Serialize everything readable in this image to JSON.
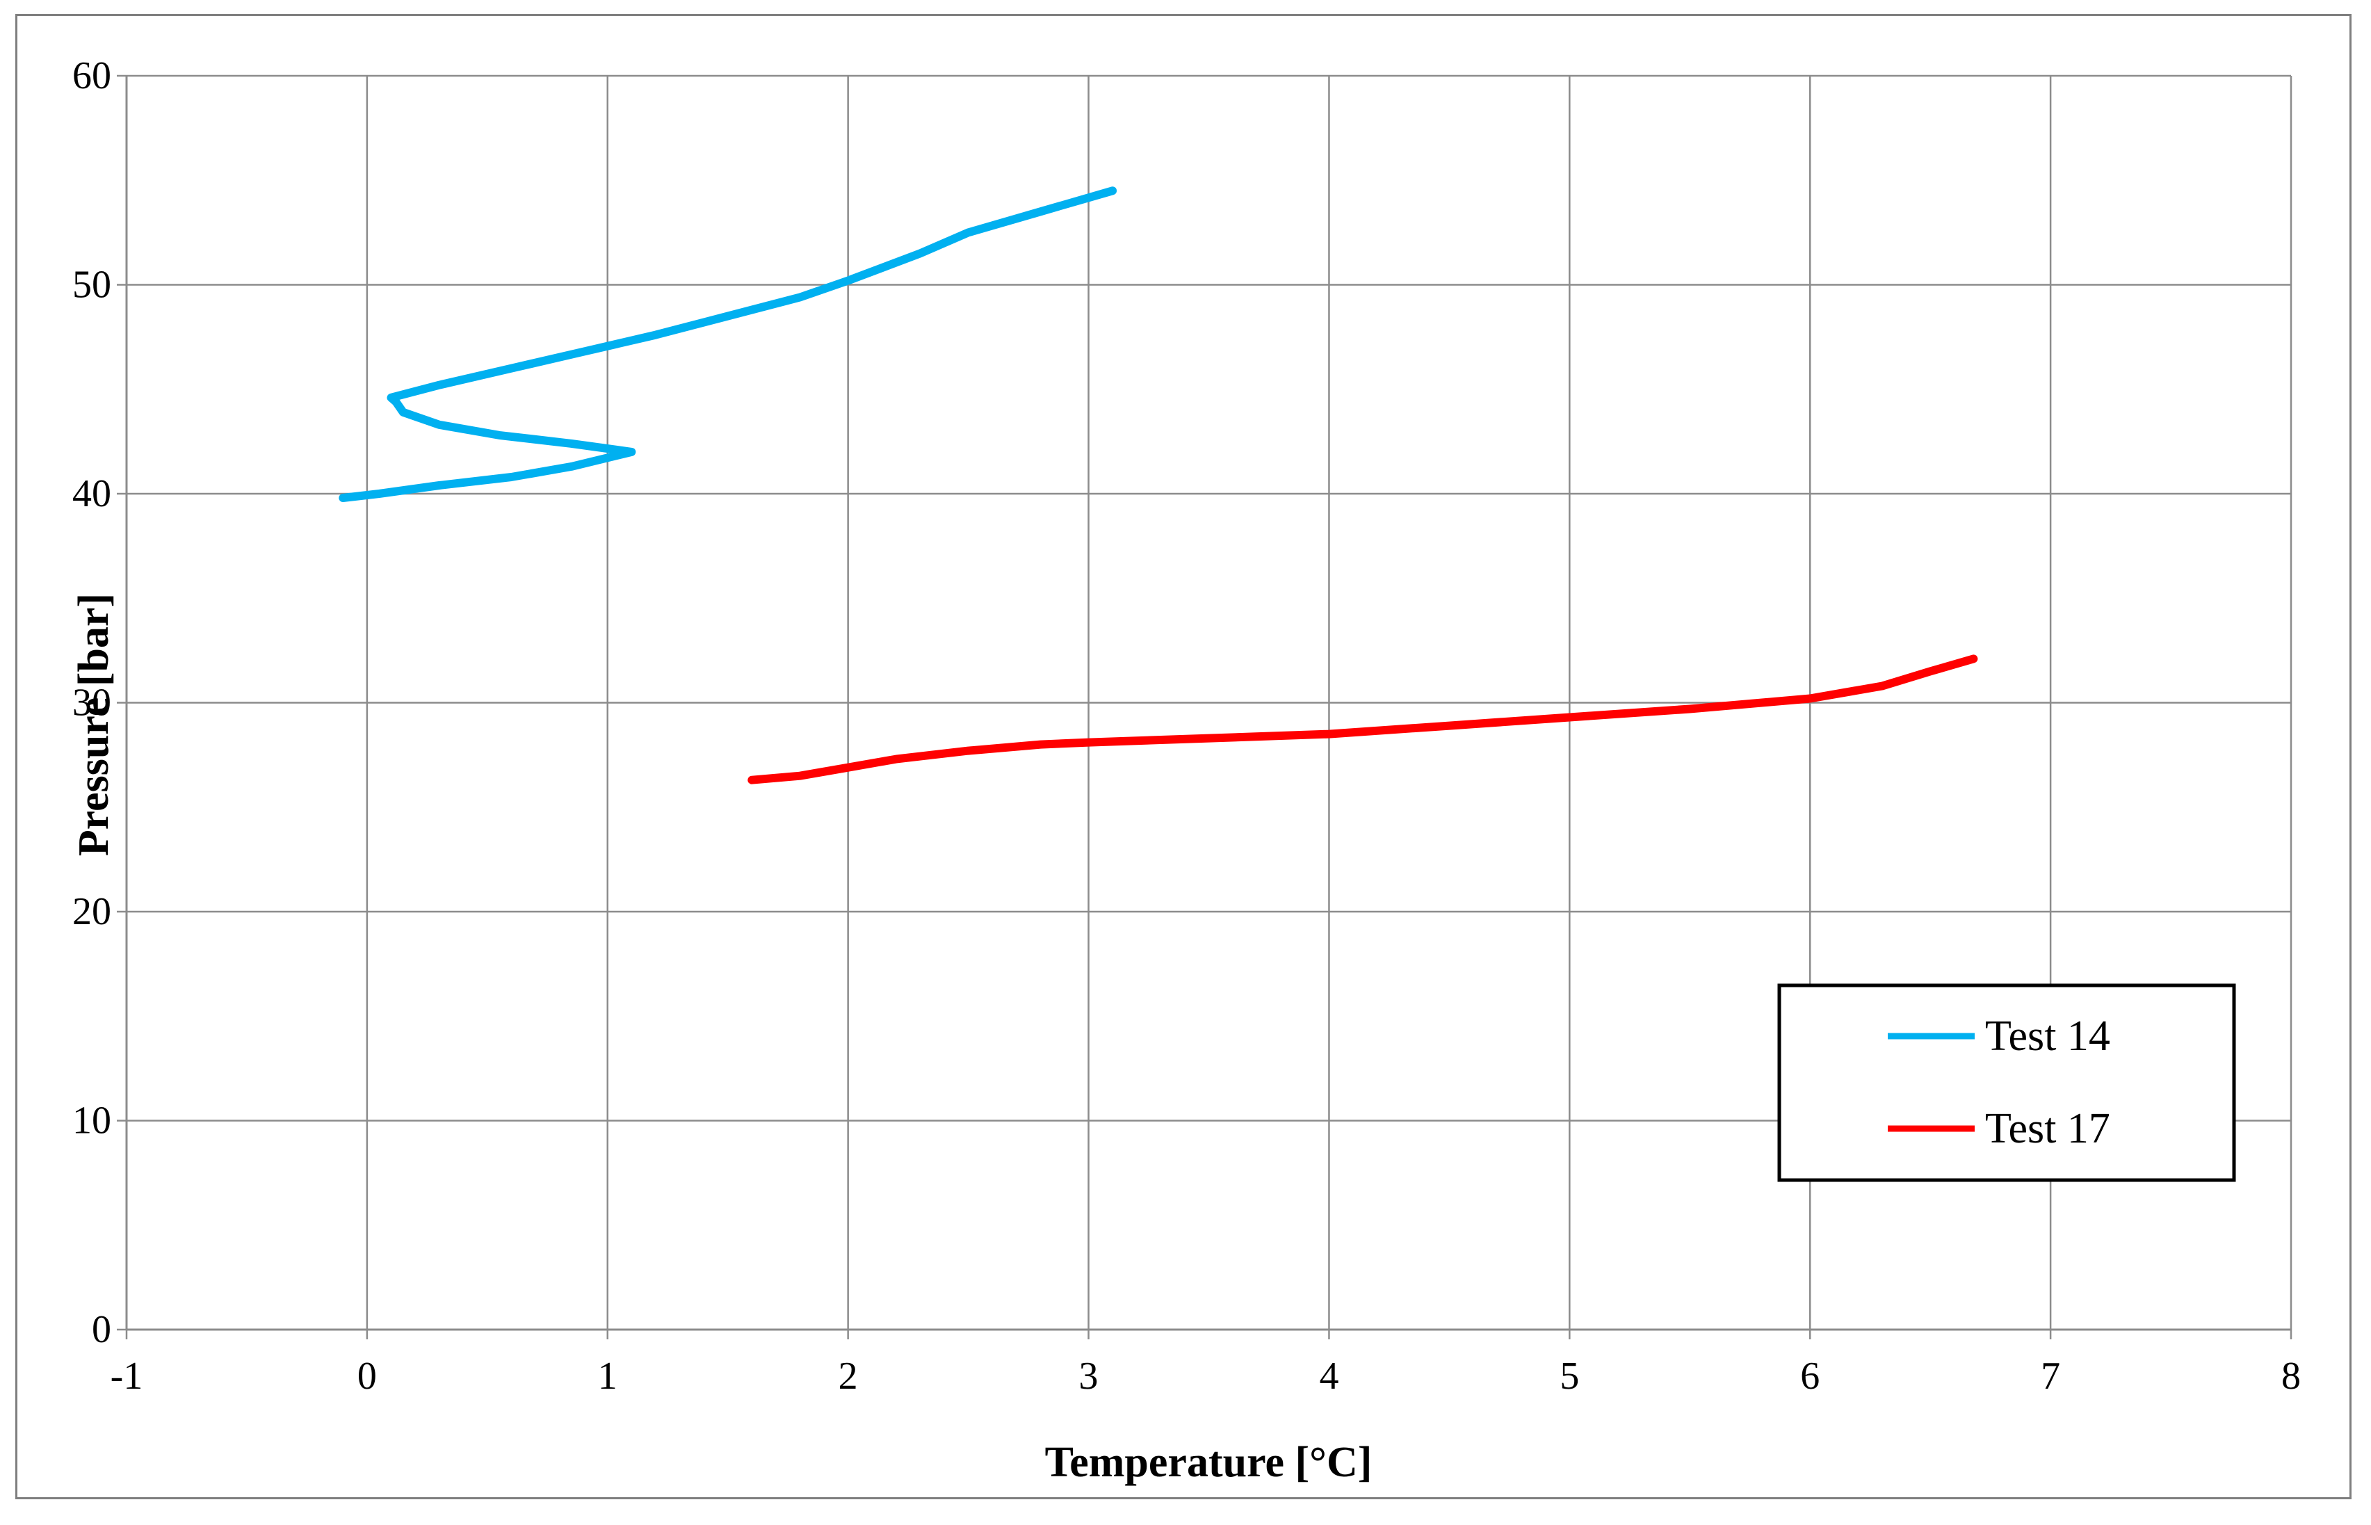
{
  "chart_data": {
    "type": "line",
    "title": "",
    "xlabel": "Temperature [°C]",
    "ylabel": "Pressure [bar]",
    "xlim": [
      -1,
      8
    ],
    "ylim": [
      0,
      60
    ],
    "x_ticks": [
      "-1",
      "0",
      "1",
      "2",
      "3",
      "4",
      "5",
      "6",
      "7",
      "8"
    ],
    "y_ticks": [
      "0",
      "10",
      "20",
      "30",
      "40",
      "50",
      "60"
    ],
    "grid": true,
    "legend_position": "lower-right",
    "series": [
      {
        "name": "Test 14",
        "color": "#00b0f0",
        "points": [
          [
            -0.1,
            39.8
          ],
          [
            0.05,
            40.0
          ],
          [
            0.3,
            40.4
          ],
          [
            0.6,
            40.8
          ],
          [
            0.85,
            41.3
          ],
          [
            1.1,
            42.0
          ],
          [
            0.85,
            42.4
          ],
          [
            0.55,
            42.8
          ],
          [
            0.3,
            43.3
          ],
          [
            0.15,
            43.9
          ],
          [
            0.12,
            44.4
          ],
          [
            0.1,
            44.6
          ],
          [
            0.3,
            45.2
          ],
          [
            0.6,
            46.0
          ],
          [
            0.9,
            46.8
          ],
          [
            1.2,
            47.6
          ],
          [
            1.5,
            48.5
          ],
          [
            1.8,
            49.4
          ],
          [
            2.0,
            50.2
          ],
          [
            2.3,
            51.5
          ],
          [
            2.5,
            52.5
          ],
          [
            2.8,
            53.5
          ],
          [
            3.1,
            54.5
          ]
        ]
      },
      {
        "name": "Test 17",
        "color": "#ff0000",
        "points": [
          [
            1.6,
            26.3
          ],
          [
            1.8,
            26.5
          ],
          [
            2.0,
            26.9
          ],
          [
            2.2,
            27.3
          ],
          [
            2.5,
            27.7
          ],
          [
            2.8,
            28.0
          ],
          [
            3.0,
            28.1
          ],
          [
            3.5,
            28.3
          ],
          [
            4.0,
            28.5
          ],
          [
            4.5,
            28.9
          ],
          [
            5.0,
            29.3
          ],
          [
            5.5,
            29.7
          ],
          [
            6.0,
            30.2
          ],
          [
            6.3,
            30.8
          ],
          [
            6.5,
            31.5
          ],
          [
            6.68,
            32.1
          ]
        ]
      }
    ]
  }
}
